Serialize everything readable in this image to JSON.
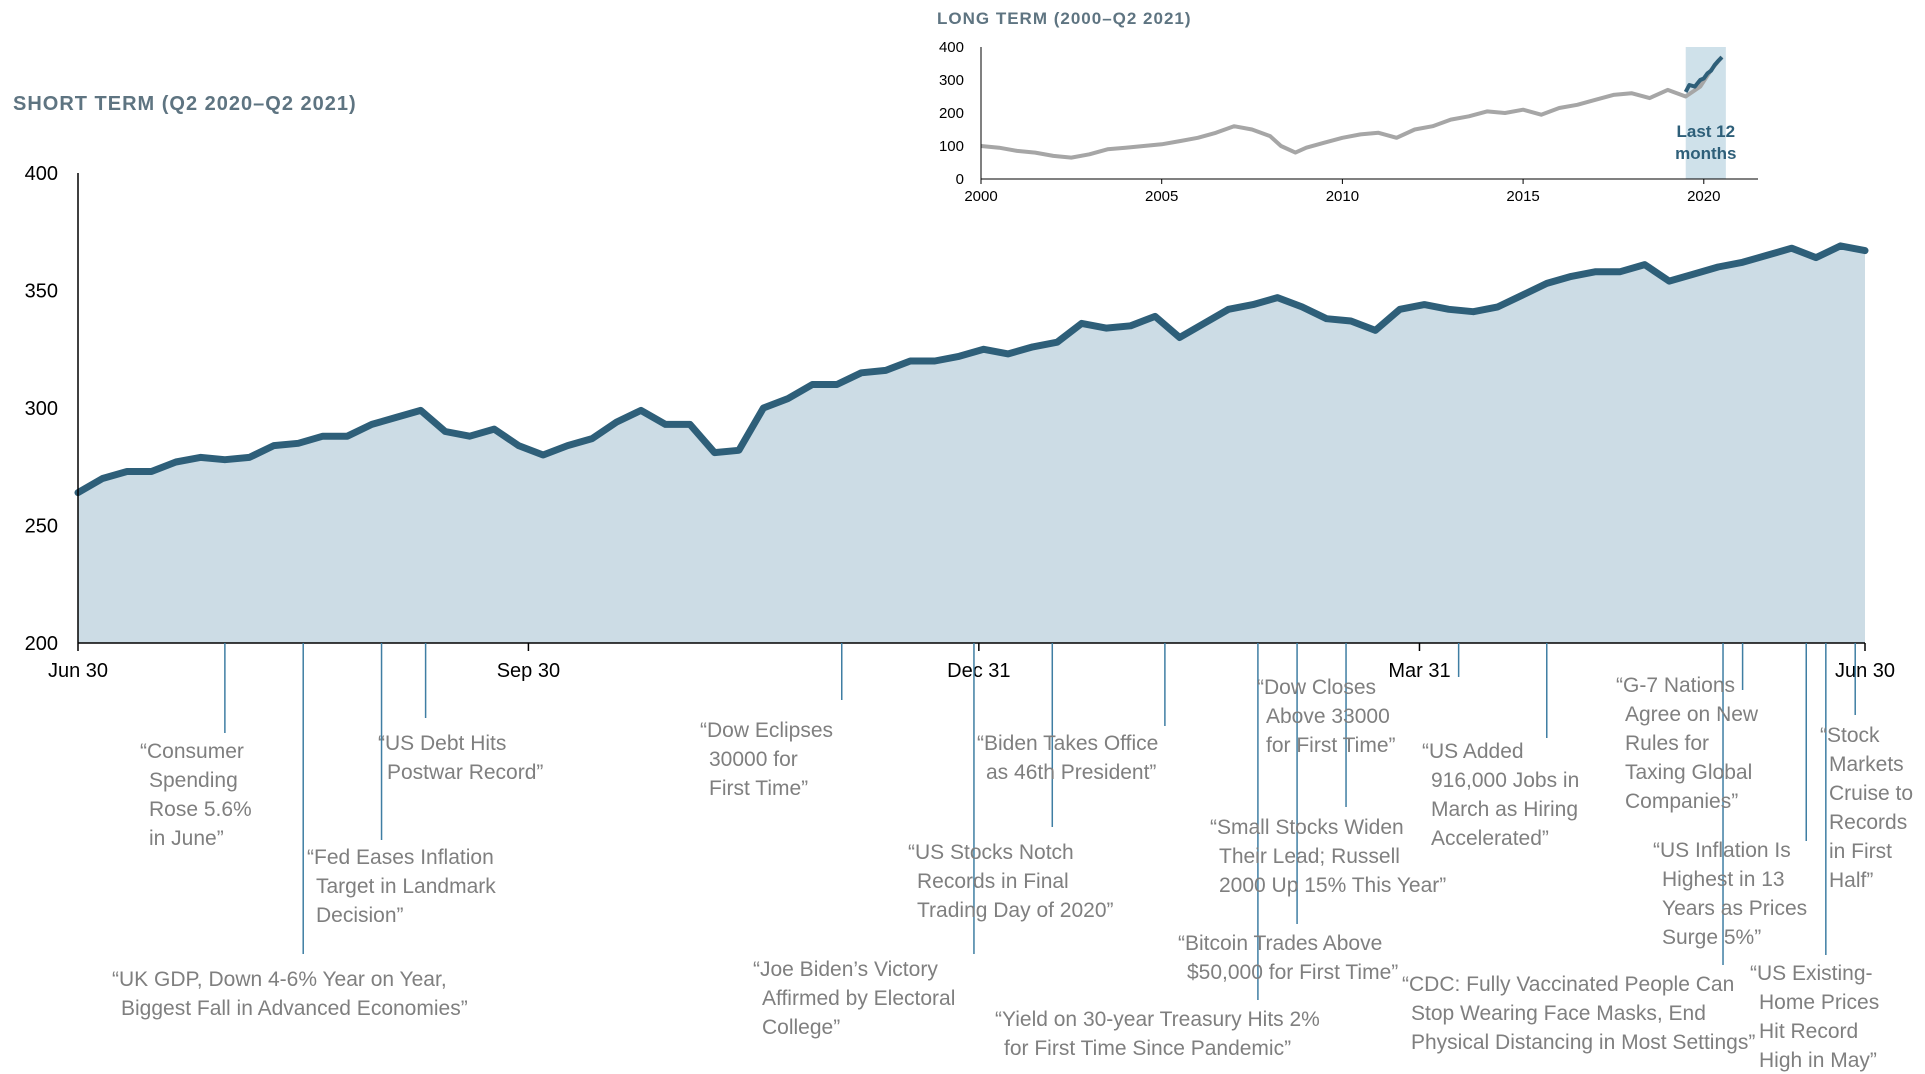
{
  "colors": {
    "line": "#2e5f79",
    "area": "#ccdce5",
    "leader": "#3f7ea3",
    "annotation_text": "#7f7f7f",
    "inset_line": "#a6a6a6",
    "highlight": "#cfe1ea",
    "title": "#5e7481"
  },
  "chart_data": [
    {
      "type": "area",
      "title": "SHORT TERM (Q2 2020–Q2 2021)",
      "xlabel": "",
      "ylabel": "",
      "ylim": [
        200,
        400
      ],
      "yticks": [
        "200",
        "250",
        "300",
        "350",
        "400"
      ],
      "xticks": [
        "Jun 30",
        "Sep 30",
        "Dec 31",
        "Mar 31",
        "Jun 30"
      ],
      "xlim": [
        0,
        365
      ],
      "grid": false,
      "legend": "none",
      "series": [
        {
          "x": [
            0,
            5,
            10,
            15,
            20,
            25,
            30,
            35,
            40,
            45,
            50,
            55,
            60,
            65,
            70,
            75,
            80,
            85,
            90,
            95,
            100,
            105,
            110,
            115,
            120,
            125,
            130,
            135,
            140,
            145,
            150,
            155,
            160,
            165,
            170,
            175,
            180,
            185,
            190,
            195,
            200,
            205,
            210,
            215,
            220,
            225,
            230,
            235,
            240,
            245,
            250,
            255,
            260,
            265,
            270,
            275,
            280,
            285,
            290,
            295,
            300,
            305,
            310,
            315,
            320,
            325,
            330,
            335,
            340,
            345,
            350,
            355,
            360,
            365
          ],
          "values": [
            264,
            270,
            273,
            273,
            277,
            279,
            278,
            279,
            284,
            285,
            288,
            288,
            293,
            296,
            299,
            290,
            288,
            291,
            284,
            280,
            284,
            287,
            294,
            299,
            293,
            293,
            281,
            282,
            300,
            304,
            310,
            310,
            315,
            316,
            320,
            320,
            322,
            325,
            323,
            326,
            328,
            336,
            334,
            335,
            339,
            330,
            336,
            342,
            344,
            347,
            343,
            338,
            337,
            333,
            342,
            344,
            342,
            341,
            343,
            348,
            353,
            356,
            358,
            358,
            361,
            354,
            357,
            360,
            362,
            365,
            368,
            364,
            369,
            367
          ]
        }
      ]
    },
    {
      "type": "line",
      "title": "LONG TERM (2000–Q2 2021)",
      "xlabel": "",
      "ylabel": "",
      "xlim": [
        2000,
        2021.5
      ],
      "ylim": [
        0,
        400
      ],
      "yticks": [
        "0",
        "100",
        "200",
        "300",
        "400"
      ],
      "xticks": [
        "2000",
        "2005",
        "2010",
        "2015",
        "2020"
      ],
      "highlight": {
        "from": 2019.5,
        "to": 2020.5,
        "label_lines": [
          "Last 12",
          "months"
        ]
      },
      "series": [
        {
          "x": [
            2000,
            2000.5,
            2001,
            2001.5,
            2002,
            2002.5,
            2003,
            2003.5,
            2004,
            2004.5,
            2005,
            2005.5,
            2006,
            2006.5,
            2007,
            2007.5,
            2008,
            2008.3,
            2008.7,
            2009,
            2009.5,
            2010,
            2010.5,
            2011,
            2011.5,
            2012,
            2012.5,
            2013,
            2013.5,
            2014,
            2014.5,
            2015,
            2015.5,
            2016,
            2016.5,
            2017,
            2017.5,
            2018,
            2018.5,
            2019,
            2019.5,
            2019.9,
            2020.2,
            2020.5
          ],
          "values": [
            100,
            95,
            85,
            80,
            70,
            65,
            75,
            90,
            95,
            100,
            105,
            115,
            125,
            140,
            160,
            150,
            130,
            100,
            80,
            95,
            110,
            125,
            135,
            140,
            125,
            150,
            160,
            180,
            190,
            205,
            200,
            210,
            195,
            215,
            225,
            240,
            255,
            260,
            245,
            270,
            250,
            280,
            330,
            370
          ]
        },
        {
          "x": [
            2019.5,
            2019.6,
            2019.75,
            2019.9,
            2020,
            2020.1,
            2020.2,
            2020.3,
            2020.4,
            2020.5
          ],
          "values": [
            264,
            285,
            280,
            300,
            305,
            320,
            328,
            345,
            358,
            369
          ]
        }
      ]
    }
  ],
  "annotations": [
    {
      "id": "consumer-spending",
      "x": 30,
      "lines": [
        "“Consumer",
        "Spending",
        "Rose 5.6%",
        "in June”"
      ]
    },
    {
      "id": "uk-gdp",
      "x": 46,
      "lines": [
        "“UK GDP, Down 4-6% Year on Year,",
        "Biggest Fall in Advanced Economies”"
      ]
    },
    {
      "id": "fed-eases",
      "x": 62,
      "lines": [
        "“Fed Eases Inflation",
        "Target in Landmark",
        "Decision”"
      ]
    },
    {
      "id": "us-debt",
      "x": 71,
      "lines": [
        "“US Debt Hits",
        "Postwar Record”"
      ]
    },
    {
      "id": "dow-eclipses",
      "x": 156,
      "lines": [
        "“Dow Eclipses",
        "30000 for",
        "First Time”"
      ]
    },
    {
      "id": "joe-biden",
      "x": 183,
      "lines": [
        "“Joe Biden’s Victory",
        "Affirmed by Electoral",
        "College”"
      ]
    },
    {
      "id": "us-stocks-notch",
      "x": 199,
      "lines": [
        "“US Stocks Notch",
        "Records in Final",
        "Trading Day of 2020”"
      ]
    },
    {
      "id": "biden-takes-office",
      "x": 222,
      "lines": [
        "“Biden Takes Office",
        "as 46th President”"
      ]
    },
    {
      "id": "yield-30year",
      "x": 241,
      "lines": [
        "“Yield on 30-year Treasury Hits 2%",
        "for First Time Since Pandemic”"
      ]
    },
    {
      "id": "bitcoin",
      "x": 249,
      "lines": [
        "“Bitcoin Trades Above",
        "$50,000 for First Time”"
      ]
    },
    {
      "id": "small-stocks",
      "x": 259,
      "lines": [
        "“Small Stocks Widen",
        "Their Lead; Russell",
        "2000 Up 15% This Year”"
      ]
    },
    {
      "id": "dow-closes",
      "x": 282,
      "lines": [
        "“Dow Closes",
        "Above 33000",
        "for First Time”"
      ]
    },
    {
      "id": "us-added-jobs",
      "x": 300,
      "lines": [
        "“US Added",
        "916,000 Jobs in",
        "March as Hiring",
        "Accelerated”"
      ]
    },
    {
      "id": "cdc",
      "x": 336,
      "lines": [
        "“CDC: Fully Vaccinated People Can",
        "Stop Wearing Face Masks, End",
        "Physical Distancing in Most Settings”"
      ]
    },
    {
      "id": "g7",
      "x": 340,
      "lines": [
        "“G-7 Nations",
        "Agree on New",
        "Rules for",
        "Taxing Global",
        "Companies”"
      ]
    },
    {
      "id": "us-inflation",
      "x": 353,
      "lines": [
        "“US Inflation Is",
        "Highest in 13",
        "Years as Prices",
        "Surge 5%”"
      ]
    },
    {
      "id": "home-prices",
      "x": 357,
      "lines": [
        "“US Existing-",
        "Home Prices",
        "Hit Record",
        "High in May”"
      ]
    },
    {
      "id": "stock-markets-cruise",
      "x": 363,
      "lines": [
        "“Stock",
        "Markets",
        "Cruise to",
        "Records",
        "in First",
        "Half”"
      ]
    }
  ]
}
